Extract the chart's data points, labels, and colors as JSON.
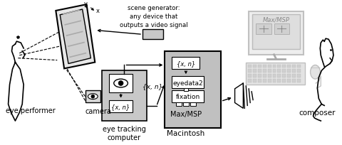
{
  "bg_color": "#ffffff",
  "scene_gen_text": "scene generator:\nany device that\noutputs a video signal",
  "eye_performer_label": "eye performer",
  "camera_label": "camera",
  "eye_tracking_label": "eye tracking\ncomputer",
  "maxmsp_label": "Max/MSP",
  "macintosh_label": "Macintosh",
  "composer_label": "composer",
  "xy_n_text": "{x, n}",
  "eyedata2_text": "eyedata2",
  "fixation_text": "fixation"
}
